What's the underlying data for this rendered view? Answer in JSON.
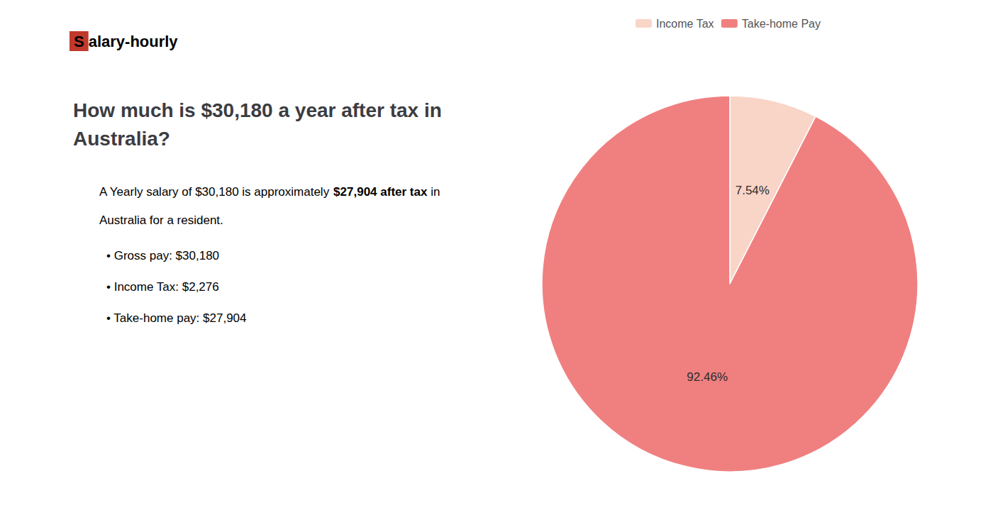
{
  "chart_data": {
    "type": "pie",
    "title": "How much is $30,180 a year after tax in\nAustralia?",
    "categories": [
      "Income Tax",
      "Take-home Pay"
    ],
    "values": [
      7.54,
      92.46
    ],
    "value_labels": [
      "7.54%",
      "92.46%"
    ],
    "colors": [
      "#f9d5c8",
      "#f08080"
    ],
    "data_labels": true,
    "legend": "top",
    "annotations": [
      [
        {
          "text": "S",
          "color": "#c0392b"
        },
        {
          "text": "alary-hourly"
        }
      ],
      [
        {
          "text": "A Yearly salary of $30,180 is approximately "
        },
        {
          "text": "$27,904 after tax",
          "color": "#c0392b"
        },
        {
          "text": " in"
        }
      ],
      [
        {
          "text": "Australia for a resident."
        }
      ],
      [
        {
          "text": "• Gross pay: $30,180"
        }
      ],
      [
        {
          "text": "• Income Tax: $2,276"
        }
      ],
      [
        {
          "text": "• Take-home pay: $27,904"
        }
      ]
    ]
  }
}
